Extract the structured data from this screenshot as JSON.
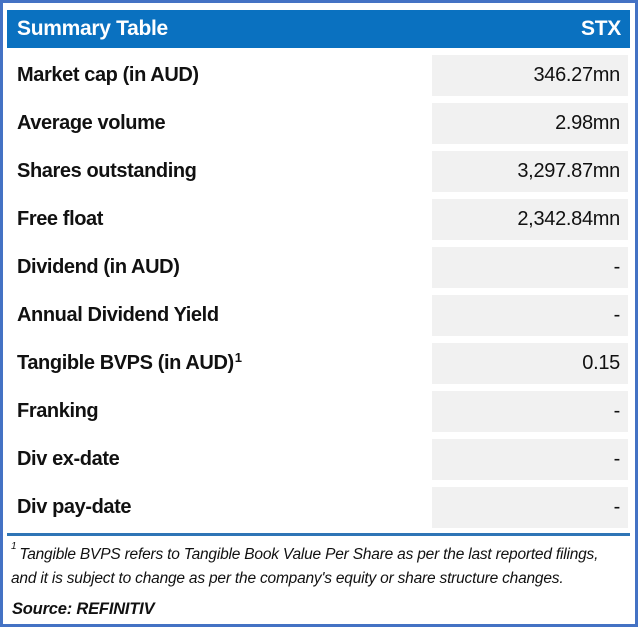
{
  "header": {
    "title": "Summary Table",
    "ticker": "STX"
  },
  "rows": [
    {
      "label": "Market cap (in AUD)",
      "value": "346.27mn"
    },
    {
      "label": "Average volume",
      "value": "2.98mn"
    },
    {
      "label": "Shares outstanding",
      "value": "3,297.87mn"
    },
    {
      "label": "Free float",
      "value": "2,342.84mn"
    },
    {
      "label": "Dividend (in AUD)",
      "value": "-"
    },
    {
      "label": "Annual Dividend Yield",
      "value": "-"
    },
    {
      "label": "Tangible BVPS (in AUD)",
      "superscript": "1",
      "value": "0.15"
    },
    {
      "label": "Franking",
      "value": "-"
    },
    {
      "label": "Div ex-date",
      "value": "-"
    },
    {
      "label": "Div pay-date",
      "value": "-"
    }
  ],
  "footnote": {
    "superscript": "1",
    "text": "Tangible BVPS refers to Tangible Book Value Per Share as per the last reported filings, and it is subject to change as per the company's equity or share structure changes."
  },
  "source": "Source: REFINITIV",
  "colors": {
    "border": "#4472C4",
    "header_bg": "#0A71C0",
    "header_text": "#FFFFFF",
    "cell_bg": "#F1F1F1",
    "separator": "#2E75B6",
    "text": "#111111"
  }
}
